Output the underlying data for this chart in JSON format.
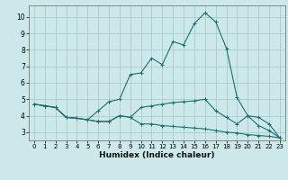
{
  "xlabel": "Humidex (Indice chaleur)",
  "ylabel": "",
  "background_color": "#cce8e8",
  "grid_color": "#aacccc",
  "line_color": "#1a7070",
  "xlim": [
    -0.5,
    23.5
  ],
  "ylim": [
    2.5,
    10.7
  ],
  "xticks": [
    0,
    1,
    2,
    3,
    4,
    5,
    6,
    7,
    8,
    9,
    10,
    11,
    12,
    13,
    14,
    15,
    16,
    17,
    18,
    19,
    20,
    21,
    22,
    23
  ],
  "yticks": [
    3,
    4,
    5,
    6,
    7,
    8,
    9,
    10
  ],
  "line1_x": [
    0,
    1,
    2,
    3,
    4,
    5,
    6,
    7,
    8,
    9,
    10,
    11,
    12,
    13,
    14,
    15,
    16,
    17,
    18,
    19,
    20,
    21,
    22,
    23
  ],
  "line1_y": [
    4.7,
    4.6,
    4.5,
    3.9,
    3.85,
    3.75,
    3.65,
    3.65,
    4.0,
    3.9,
    3.5,
    3.5,
    3.4,
    3.35,
    3.3,
    3.25,
    3.2,
    3.1,
    3.0,
    2.95,
    2.85,
    2.8,
    2.75,
    2.65
  ],
  "line2_x": [
    0,
    1,
    2,
    3,
    4,
    5,
    6,
    7,
    8,
    9,
    10,
    11,
    12,
    13,
    14,
    15,
    16,
    17,
    18,
    19,
    20,
    21,
    22,
    23
  ],
  "line2_y": [
    4.7,
    4.6,
    4.5,
    3.9,
    3.85,
    3.75,
    4.3,
    4.85,
    5.0,
    6.5,
    6.6,
    7.5,
    7.1,
    8.5,
    8.3,
    9.6,
    10.25,
    9.7,
    8.1,
    5.1,
    4.0,
    3.4,
    3.1,
    2.65
  ],
  "line3_x": [
    0,
    1,
    2,
    3,
    4,
    5,
    6,
    7,
    8,
    9,
    10,
    11,
    12,
    13,
    14,
    15,
    16,
    17,
    18,
    19,
    20,
    21,
    22,
    23
  ],
  "line3_y": [
    4.7,
    4.6,
    4.5,
    3.9,
    3.85,
    3.75,
    3.65,
    3.65,
    4.0,
    3.9,
    4.5,
    4.6,
    4.7,
    4.8,
    4.85,
    4.9,
    5.0,
    4.3,
    3.9,
    3.5,
    4.0,
    3.9,
    3.5,
    2.65
  ]
}
